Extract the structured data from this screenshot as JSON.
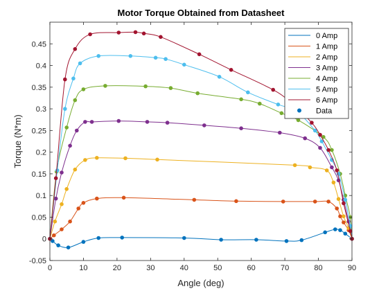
{
  "chart_data": {
    "type": "line",
    "title": "Motor Torque Obtained from Datasheet",
    "xlabel": "Angle (deg)",
    "ylabel": "Torque (N*m)",
    "xlim": [
      0,
      90
    ],
    "ylim": [
      -0.05,
      0.5
    ],
    "xticks": [
      0,
      10,
      20,
      30,
      40,
      50,
      60,
      70,
      80,
      90
    ],
    "xtick_labels": [
      "0",
      "10",
      "20",
      "30",
      "40",
      "50",
      "60",
      "70",
      "80",
      "90"
    ],
    "yticks": [
      -0.05,
      0,
      0.05,
      0.1,
      0.15,
      0.2,
      0.25,
      0.3,
      0.35,
      0.4,
      0.45
    ],
    "ytick_labels": [
      "-0.05",
      "0",
      "0.05",
      "0.1",
      "0.15",
      "0.2",
      "0.25",
      "0.3",
      "0.35",
      "0.4",
      "0.45"
    ],
    "grid": false,
    "legend_position": "top-right",
    "data_marker_label": "Data",
    "series": [
      {
        "name": "0 Amp",
        "color": "#0072BD",
        "x": [
          0,
          0.8,
          2.5,
          5.5,
          10,
          14.5,
          21.5,
          40,
          51,
          61.5,
          70.5,
          75,
          82,
          85,
          86.5,
          88,
          90
        ],
        "values": [
          0.0,
          -0.005,
          -0.015,
          -0.02,
          -0.007,
          0.002,
          0.003,
          0.002,
          -0.002,
          -0.002,
          -0.005,
          -0.003,
          0.015,
          0.022,
          0.02,
          0.012,
          0.0
        ]
      },
      {
        "name": "1 Amp",
        "color": "#D95319",
        "x": [
          0,
          1.2,
          3.5,
          6,
          8.5,
          10,
          14,
          22,
          43,
          55.5,
          69.5,
          79,
          83,
          85.5,
          86.5,
          87.5,
          89,
          90
        ],
        "values": [
          0.0,
          0.008,
          0.022,
          0.04,
          0.07,
          0.083,
          0.093,
          0.095,
          0.09,
          0.087,
          0.086,
          0.086,
          0.086,
          0.07,
          0.052,
          0.038,
          0.02,
          0.0
        ]
      },
      {
        "name": "2 Amp",
        "color": "#EDB120",
        "x": [
          0,
          1.5,
          3.5,
          5,
          7.5,
          10.5,
          14,
          22.5,
          32,
          73,
          77.5,
          82.5,
          84.5,
          86,
          87.5,
          89,
          90
        ],
        "values": [
          0.0,
          0.04,
          0.08,
          0.115,
          0.16,
          0.182,
          0.187,
          0.186,
          0.183,
          0.17,
          0.165,
          0.158,
          0.13,
          0.092,
          0.052,
          0.025,
          0.0
        ]
      },
      {
        "name": "3 Amp",
        "color": "#7E2F8E",
        "x": [
          0,
          1.8,
          3.5,
          6,
          8,
          10.5,
          12.5,
          20.5,
          29,
          35,
          46,
          57,
          68.5,
          76,
          80.5,
          84,
          86,
          87.5,
          89,
          90
        ],
        "values": [
          0.0,
          0.093,
          0.153,
          0.215,
          0.25,
          0.27,
          0.27,
          0.272,
          0.27,
          0.268,
          0.262,
          0.255,
          0.245,
          0.232,
          0.21,
          0.165,
          0.135,
          0.09,
          0.04,
          0.0
        ]
      },
      {
        "name": "4 Amp",
        "color": "#77AC30",
        "x": [
          0,
          2,
          5,
          7.5,
          10,
          16.5,
          28.5,
          36,
          44,
          57,
          62.5,
          69,
          74,
          81.5,
          84,
          86.5,
          88,
          89.5,
          90
        ],
        "values": [
          0.0,
          0.155,
          0.257,
          0.32,
          0.345,
          0.353,
          0.352,
          0.348,
          0.336,
          0.322,
          0.312,
          0.29,
          0.274,
          0.235,
          0.205,
          0.15,
          0.1,
          0.05,
          0.0
        ]
      },
      {
        "name": "5 Amp",
        "color": "#4DBEEE",
        "x": [
          0,
          2.2,
          4.5,
          7,
          9,
          14.5,
          24,
          31.5,
          34.5,
          40,
          50.5,
          59,
          68,
          73.5,
          79,
          81,
          84,
          86,
          88,
          89.5,
          90
        ],
        "values": [
          0.0,
          0.158,
          0.3,
          0.37,
          0.405,
          0.422,
          0.422,
          0.418,
          0.415,
          0.402,
          0.374,
          0.338,
          0.31,
          0.295,
          0.25,
          0.225,
          0.182,
          0.15,
          0.09,
          0.03,
          0.0
        ]
      },
      {
        "name": "6 Amp",
        "color": "#A2142F",
        "x": [
          0,
          1.8,
          4.5,
          7.5,
          12,
          20.5,
          25.5,
          28,
          33,
          44.5,
          54,
          66.5,
          72,
          78,
          80.5,
          83,
          85.5,
          87.5,
          89.5,
          90
        ],
        "values": [
          0.0,
          0.14,
          0.368,
          0.438,
          0.472,
          0.476,
          0.477,
          0.474,
          0.466,
          0.426,
          0.39,
          0.344,
          0.313,
          0.268,
          0.24,
          0.205,
          0.158,
          0.082,
          0.018,
          0.0
        ]
      }
    ]
  }
}
